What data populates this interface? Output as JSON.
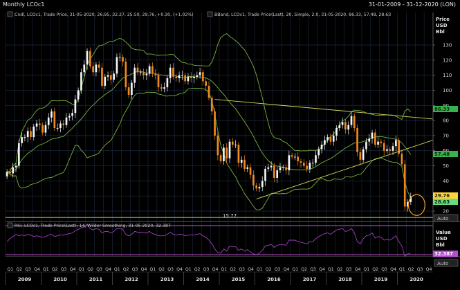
{
  "window": {
    "title": "Monthly LCOc1",
    "date_range": "31-01-2009 - 31-12-2020 (LON)"
  },
  "colors": {
    "background": "#000000",
    "grid": "#1e2a40",
    "candle_up": "#f5f5f5",
    "candle_down": "#f08a1e",
    "bband": "#78b43c",
    "trendline": "#d8d85a",
    "support": "#d8d85a",
    "rsi": "#a040c0",
    "rsi_bounds": "#c050d0",
    "circle": "#f0a020",
    "tag_upper_bg": "#37b24d",
    "tag_lower_bg": "#37b24d",
    "tag_last_bg": "#ffd43b",
    "tag_bb_bg": "#69db7c",
    "tag_rsi_bg": "#b44fd0"
  },
  "legend": {
    "candle": "Cndl, LCOc1, Trade Price, 31-05-2020, 26.95, 32.27, 25.50, 29.76, +0.30, (+1.02%)",
    "bband": "BBand, LCOc1, Trade Price(Last), 20, Simple, 2.0, 31-05-2020, 86.33, 57.48, 28.63",
    "rsi": "RSI, LCOc1, Trade Price(Last), 14, Wilder Smoothing, 31-05-2020, 32.387"
  },
  "price_axis": {
    "header_lines": [
      "Price",
      "USD",
      "Bbl"
    ],
    "ticks": [
      "130",
      "120",
      "110",
      "100",
      "90",
      "80",
      "70",
      "60",
      "50",
      "40",
      "30",
      "20"
    ],
    "button": "Auto"
  },
  "rsi_axis": {
    "header_lines": [
      "Value",
      "USD",
      "Bbl"
    ],
    "button": "Auto"
  },
  "tags": {
    "upper_band": "86.33",
    "middle_band": "57.48",
    "last_price": "29.76",
    "lower_band": "28.63",
    "rsi_value": "32.387"
  },
  "annotations": {
    "low_label": "15.77"
  },
  "chart_data": [
    {
      "type": "candlestick",
      "title": "Monthly LCOc1",
      "ylabel": "Price USD Bbl",
      "ylim": [
        15,
        135
      ],
      "x_range": [
        "2009-01",
        "2020-12"
      ],
      "x_units": "months",
      "last_bar": {
        "date": "31-05-2020",
        "open": 26.95,
        "high": 32.27,
        "low": 25.5,
        "close": 29.76,
        "change": 0.3,
        "change_pct": 1.02
      },
      "closes": [
        46,
        45,
        49,
        50,
        65,
        69,
        69,
        73,
        69,
        76,
        78,
        77,
        72,
        77,
        82,
        86,
        75,
        75,
        78,
        77,
        82,
        83,
        85,
        94,
        100,
        112,
        117,
        126,
        116,
        112,
        117,
        115,
        103,
        109,
        110,
        107,
        111,
        122,
        122,
        119,
        102,
        97,
        105,
        115,
        112,
        112,
        110,
        111,
        116,
        111,
        110,
        102,
        101,
        102,
        108,
        115,
        109,
        108,
        110,
        110,
        106,
        109,
        108,
        109,
        110,
        112,
        106,
        103,
        95,
        86,
        70,
        57,
        53,
        62,
        55,
        66,
        64,
        64,
        52,
        54,
        48,
        49,
        44,
        37,
        35,
        36,
        40,
        48,
        49,
        50,
        42,
        47,
        49,
        49,
        47,
        57,
        56,
        56,
        53,
        52,
        50,
        48,
        52,
        52,
        57,
        61,
        64,
        67,
        69,
        66,
        70,
        75,
        77,
        79,
        74,
        77,
        83,
        75,
        59,
        54,
        61,
        66,
        68,
        72,
        64,
        66,
        65,
        60,
        61,
        60,
        63,
        67,
        58,
        51,
        23,
        26,
        29.76
      ],
      "bollinger": {
        "period": 20,
        "method": "Simple",
        "stdev": 2.0,
        "last_upper": 86.33,
        "last_middle": 57.48,
        "last_lower": 28.63
      },
      "annotations": [
        {
          "type": "horizontal_line",
          "value": 15.77,
          "label": "15.77"
        },
        {
          "type": "trendline",
          "label": ""
        },
        {
          "type": "circle",
          "around": "2020 Q2"
        }
      ]
    },
    {
      "type": "line",
      "title": "RSI",
      "series": [
        {
          "name": "RSI",
          "last": 32.387,
          "period": 14,
          "method": "Wilder Smoothing"
        }
      ],
      "ylabel": "Value USD Bbl",
      "values": [
        48,
        52,
        55,
        58,
        56,
        57,
        56,
        58,
        57,
        55,
        56,
        55,
        54,
        55,
        57,
        58,
        55,
        56,
        57,
        57,
        58,
        59,
        60,
        63,
        65,
        67,
        68,
        72,
        66,
        64,
        66,
        65,
        60,
        62,
        62,
        60,
        62,
        66,
        66,
        65,
        58,
        56,
        58,
        62,
        61,
        61,
        60,
        60,
        62,
        59,
        58,
        56,
        56,
        56,
        58,
        61,
        58,
        57,
        58,
        58,
        56,
        57,
        57,
        57,
        58,
        59,
        56,
        54,
        50,
        45,
        38,
        33,
        32,
        38,
        35,
        42,
        41,
        41,
        36,
        38,
        35,
        37,
        34,
        31,
        30,
        32,
        36,
        42,
        43,
        44,
        40,
        43,
        44,
        44,
        43,
        50,
        50,
        50,
        48,
        47,
        46,
        45,
        48,
        48,
        52,
        55,
        57,
        59,
        60,
        58,
        61,
        64,
        65,
        66,
        62,
        63,
        66,
        60,
        48,
        45,
        52,
        56,
        57,
        60,
        53,
        55,
        54,
        50,
        51,
        50,
        53,
        56,
        48,
        42,
        28,
        31,
        32.387
      ]
    }
  ],
  "x_axis": {
    "quarter_labels": [
      "Q1",
      "Q2",
      "Q3",
      "Q4"
    ],
    "years": [
      "2009",
      "2010",
      "2011",
      "2012",
      "2013",
      "2014",
      "2015",
      "2016",
      "2017",
      "2018",
      "2019",
      "2020"
    ]
  }
}
